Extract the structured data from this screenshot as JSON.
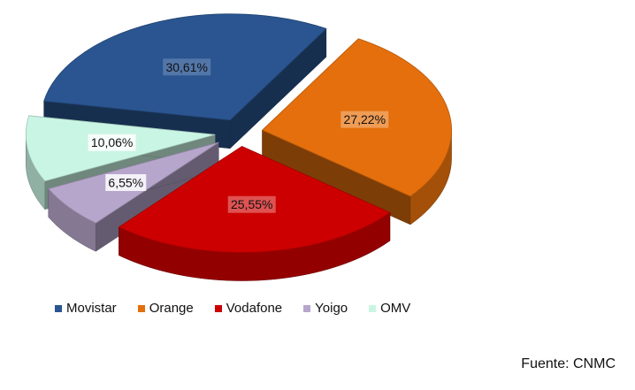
{
  "chart_data": {
    "type": "pie",
    "title": "",
    "categories": [
      "Movistar",
      "Orange",
      "Vodafone",
      "Yoigo",
      "OMV"
    ],
    "values": [
      30.61,
      27.22,
      25.55,
      6.55,
      10.06
    ],
    "data_labels": [
      "30,61%",
      "27,22%",
      "25,55%",
      "6,55%",
      "10,06%"
    ],
    "colors": [
      "#2a5590",
      "#e46f0c",
      "#cc0000",
      "#b7a6cc",
      "#c9f5e4"
    ],
    "exploded": true,
    "three_d": true,
    "legend_position": "bottom-left"
  },
  "source_text": "Fuente: CNMC"
}
